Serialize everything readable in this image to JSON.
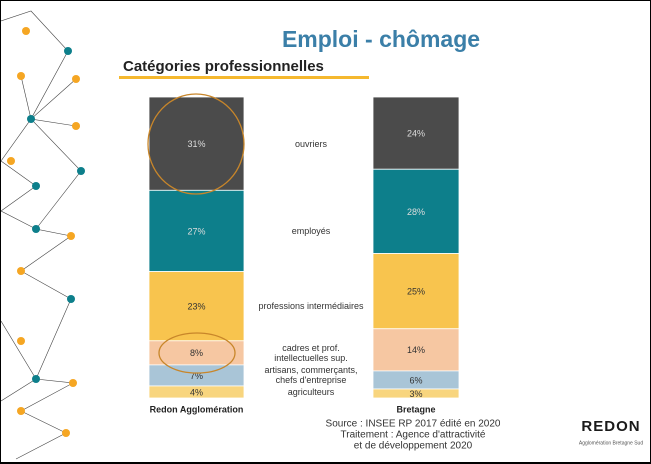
{
  "chart_data": {
    "type": "stacked-bar",
    "title": "Emploi - chômage",
    "subtitle": "Catégories professionnelles",
    "categories": [
      "Redon Agglomération",
      "Bretagne"
    ],
    "ylim": [
      0,
      100
    ],
    "series": [
      {
        "name": "ouvriers",
        "color": "#4b4b4b",
        "values": [
          31,
          24
        ],
        "value_labels": [
          "31%",
          "24%"
        ]
      },
      {
        "name": "employés",
        "color": "#0d7f8b",
        "values": [
          27,
          28
        ],
        "value_labels": [
          "27%",
          "28%"
        ]
      },
      {
        "name": "professions intermédiaires",
        "color": "#f8c44e",
        "values": [
          23,
          25
        ],
        "value_labels": [
          "23%",
          "25%"
        ]
      },
      {
        "name": "cadres et prof. intellectuelles sup.",
        "color": "#f6c7a2",
        "values": [
          8,
          14
        ],
        "value_labels": [
          "8%",
          "14%"
        ]
      },
      {
        "name": "artisans, commerçants, chefs d'entreprise",
        "color": "#a9c5d7",
        "values": [
          7,
          6
        ],
        "value_labels": [
          "7%",
          "6%"
        ]
      },
      {
        "name": "agriculteurs",
        "color": "#f8d57e",
        "values": [
          4,
          3
        ],
        "value_labels": [
          "4%",
          "3%"
        ]
      }
    ],
    "source": [
      "Source : INSEE RP 2017 édité en 2020",
      "Traitement : Agence d'attractivité",
      "et de développement 2020"
    ],
    "logo": {
      "name": "REDON",
      "tagline": "Agglomération Bretagne Sud"
    }
  }
}
